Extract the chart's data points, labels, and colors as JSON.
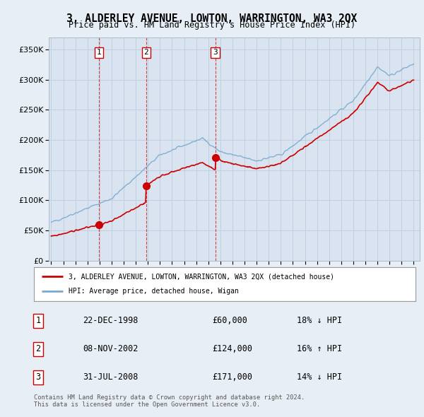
{
  "title": "3, ALDERLEY AVENUE, LOWTON, WARRINGTON, WA3 2QX",
  "subtitle": "Price paid vs. HM Land Registry's House Price Index (HPI)",
  "background_color": "#e8eef5",
  "plot_bg_color": "#dae4f0",
  "ylabel_ticks": [
    "£0",
    "£50K",
    "£100K",
    "£150K",
    "£200K",
    "£250K",
    "£300K",
    "£350K"
  ],
  "ytick_values": [
    0,
    50000,
    100000,
    150000,
    200000,
    250000,
    300000,
    350000
  ],
  "ylim": [
    0,
    370000
  ],
  "xlim_start": 1994.8,
  "xlim_end": 2025.5,
  "sale_dates": [
    1998.97,
    2002.85,
    2008.58
  ],
  "sale_prices": [
    60000,
    124000,
    171000
  ],
  "sale_labels": [
    "1",
    "2",
    "3"
  ],
  "legend_label_red": "3, ALDERLEY AVENUE, LOWTON, WARRINGTON, WA3 2QX (detached house)",
  "legend_label_blue": "HPI: Average price, detached house, Wigan",
  "table_entries": [
    {
      "num": "1",
      "date": "22-DEC-1998",
      "price": "£60,000",
      "pct": "18%",
      "dir": "↓",
      "hpi": "HPI"
    },
    {
      "num": "2",
      "date": "08-NOV-2002",
      "price": "£124,000",
      "pct": "16%",
      "dir": "↑",
      "hpi": "HPI"
    },
    {
      "num": "3",
      "date": "31-JUL-2008",
      "price": "£171,000",
      "pct": "14%",
      "dir": "↓",
      "hpi": "HPI"
    }
  ],
  "footnote": "Contains HM Land Registry data © Crown copyright and database right 2024.\nThis data is licensed under the Open Government Licence v3.0.",
  "hpi_color": "#7aaad0",
  "price_color": "#cc0000",
  "vline_color": "#cc0000",
  "grid_color": "#c0cfe0"
}
